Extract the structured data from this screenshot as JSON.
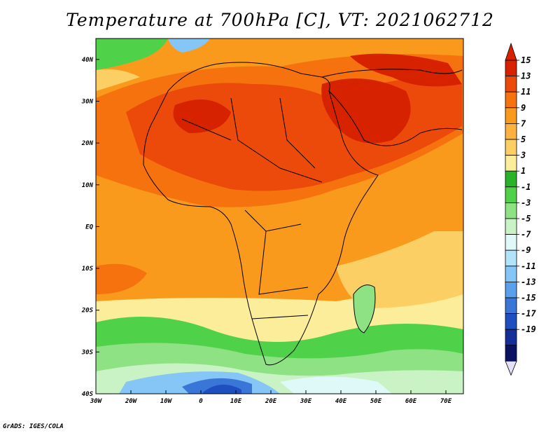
{
  "title": "Temperature at 700hPa [C], VT: 2021062712",
  "credit": "GrADS: IGES/COLA",
  "map": {
    "projection": "lat-lon",
    "lon_range": [
      -30,
      75
    ],
    "lat_range": [
      -40,
      45
    ],
    "lat_ticks": [
      {
        "value": 40,
        "label": "40N"
      },
      {
        "value": 30,
        "label": "30N"
      },
      {
        "value": 20,
        "label": "20N"
      },
      {
        "value": 10,
        "label": "10N"
      },
      {
        "value": 0,
        "label": "EQ"
      },
      {
        "value": -10,
        "label": "10S"
      },
      {
        "value": -20,
        "label": "20S"
      },
      {
        "value": -30,
        "label": "30S"
      },
      {
        "value": -40,
        "label": "40S"
      }
    ],
    "lon_ticks": [
      {
        "value": -30,
        "label": "30W"
      },
      {
        "value": -20,
        "label": "20W"
      },
      {
        "value": -10,
        "label": "10W"
      },
      {
        "value": 0,
        "label": "0"
      },
      {
        "value": 10,
        "label": "10E"
      },
      {
        "value": 20,
        "label": "20E"
      },
      {
        "value": 30,
        "label": "30E"
      },
      {
        "value": 40,
        "label": "40E"
      },
      {
        "value": 50,
        "label": "50E"
      },
      {
        "value": 60,
        "label": "60E"
      },
      {
        "value": 70,
        "label": "70E"
      }
    ],
    "coastline_color": "#000000",
    "border_color": "#000000"
  },
  "colorbar": {
    "levels": [
      "15",
      "13",
      "11",
      "9",
      "7",
      "5",
      "3",
      "1",
      "-1",
      "-3",
      "-5",
      "-7",
      "-9",
      "-11",
      "-13",
      "-15",
      "-17",
      "-19"
    ],
    "colors": [
      "#d72200",
      "#ec4a0b",
      "#f6720f",
      "#f99a1c",
      "#fcb23f",
      "#fbcf63",
      "#fbed9a",
      "#2ab22a",
      "#4fd14a",
      "#8ee283",
      "#c9f3c4",
      "#dff8f8",
      "#b3e3f8",
      "#86c6f6",
      "#5ba0ec",
      "#3a76d8",
      "#1f4ec0",
      "#152f9a",
      "#0b1360"
    ],
    "top_arrow_color": "#d72200",
    "bottom_arrow_color": "#e4e0f8"
  }
}
